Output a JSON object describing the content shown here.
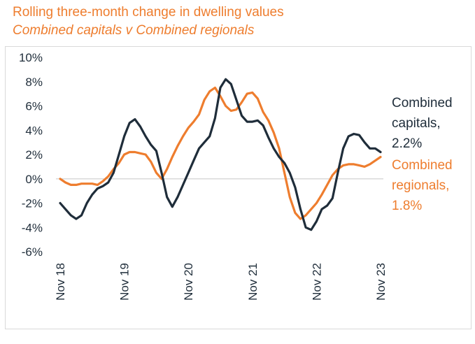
{
  "chart_data": {
    "type": "line",
    "title": "Rolling three-month change in dwelling values",
    "subtitle": "Combined capitals v Combined regionals",
    "xlabel": "",
    "ylabel": "",
    "ylim": [
      -6,
      10
    ],
    "yticks": [
      "10%",
      "8%",
      "6%",
      "4%",
      "2%",
      "0%",
      "-2%",
      "-4%",
      "-6%"
    ],
    "ytick_values": [
      10,
      8,
      6,
      4,
      2,
      0,
      -2,
      -4,
      -6
    ],
    "xticks": [
      "Nov 18",
      "Nov 19",
      "Nov 20",
      "Nov 21",
      "Nov 22",
      "Nov 23"
    ],
    "xtick_months": [
      0,
      12,
      24,
      36,
      48,
      60
    ],
    "grid": false,
    "zero_line": true,
    "series": [
      {
        "name": "Combined capitals",
        "color": "#1f2d3a",
        "label_lines": [
          "Combined",
          "capitals,",
          "2.2%"
        ],
        "values": [
          -2.0,
          -2.5,
          -3.0,
          -3.3,
          -3.0,
          -2.0,
          -1.3,
          -0.8,
          -0.6,
          -0.3,
          0.5,
          2.0,
          3.5,
          4.6,
          4.9,
          4.3,
          3.5,
          2.8,
          2.3,
          0.5,
          -1.5,
          -2.3,
          -1.5,
          -0.5,
          0.5,
          1.5,
          2.5,
          3.0,
          3.5,
          5.0,
          7.5,
          8.2,
          7.8,
          6.5,
          5.2,
          4.7,
          4.7,
          4.8,
          4.4,
          3.4,
          2.5,
          1.8,
          1.3,
          0.5,
          -0.7,
          -2.5,
          -4.0,
          -4.2,
          -3.5,
          -2.5,
          -2.2,
          -1.6,
          0.5,
          2.5,
          3.5,
          3.7,
          3.6,
          3.0,
          2.5,
          2.5,
          2.2
        ]
      },
      {
        "name": "Combined regionals",
        "color": "#ee7d2e",
        "label_lines": [
          "Combined",
          "regionals,",
          "1.8%"
        ],
        "values": [
          0.0,
          -0.3,
          -0.5,
          -0.5,
          -0.4,
          -0.4,
          -0.4,
          -0.5,
          -0.2,
          0.2,
          0.8,
          1.3,
          2.0,
          2.2,
          2.2,
          2.1,
          2.0,
          1.4,
          0.5,
          0.0,
          0.8,
          1.8,
          2.7,
          3.5,
          4.2,
          4.7,
          5.3,
          6.5,
          7.2,
          7.5,
          6.8,
          6.0,
          5.6,
          5.7,
          6.3,
          7.0,
          7.1,
          6.6,
          5.5,
          4.8,
          3.8,
          2.5,
          0.5,
          -1.5,
          -2.8,
          -3.3,
          -3.0,
          -2.5,
          -2.0,
          -1.3,
          -0.5,
          0.3,
          0.8,
          1.1,
          1.2,
          1.2,
          1.1,
          1.0,
          1.2,
          1.5,
          1.8
        ]
      }
    ]
  }
}
